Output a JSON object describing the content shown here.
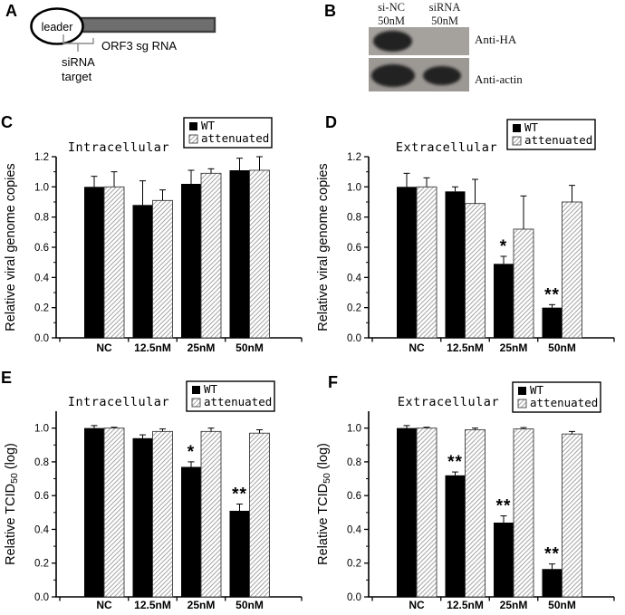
{
  "panel_a": {
    "label": "A",
    "leader": "leader",
    "orf3": "ORF3 sg RNA",
    "sirna_line1": "siRNA",
    "sirna_line2": "target"
  },
  "panel_b": {
    "label": "B",
    "lane1_line1": "si-NC",
    "lane1_line2": "50nM",
    "lane2_line1": "siRNA",
    "lane2_line2": "50nM",
    "blot1_label": "Anti-HA",
    "blot2_label": "Anti-actin"
  },
  "colors": {
    "bar_wt": "#000000",
    "hatch_line": "#a6a6a6",
    "genome_bar_fill": "#6e6e6e",
    "genome_bar_stroke": "#3d3d3d",
    "blot1_bg": "#a5a29e",
    "blot2_bg": "#9c9995"
  },
  "chart_data": [
    {
      "type": "bar",
      "panel_label": "C",
      "title": "Intracellular",
      "ylabel": "Relative viral genome copies",
      "ylabel_parts": [
        {
          "text": "Relative viral genome copies"
        }
      ],
      "xlabel": "",
      "categories": [
        "NC",
        "12.5nM",
        "25nM",
        "50nM"
      ],
      "yticks": [
        "0.0",
        "0.2",
        "0.4",
        "0.6",
        "0.8",
        "1.0",
        "1.2"
      ],
      "ylim": [
        0,
        1.2
      ],
      "grid": false,
      "legend": {
        "position": "top-right",
        "entries": [
          "WT",
          "attenuated"
        ]
      },
      "series": [
        {
          "name": "WT",
          "style": "solid-black",
          "values": [
            1.0,
            0.88,
            1.02,
            1.11
          ],
          "errors": [
            0.07,
            0.16,
            0.09,
            0.08
          ],
          "sig": [
            "",
            "",
            "",
            ""
          ]
        },
        {
          "name": "attenuated",
          "style": "hatched",
          "values": [
            1.0,
            0.91,
            1.09,
            1.11
          ],
          "errors": [
            0.1,
            0.07,
            0.03,
            0.09
          ],
          "sig": [
            "",
            "",
            "",
            ""
          ]
        }
      ]
    },
    {
      "type": "bar",
      "panel_label": "D",
      "title": "Extracellular",
      "ylabel": "Relative viral genome copies",
      "ylabel_parts": [
        {
          "text": "Relative viral genome copies"
        }
      ],
      "xlabel": "",
      "categories": [
        "NC",
        "12.5nM",
        "25nM",
        "50nM"
      ],
      "yticks": [
        "0.0",
        "0.2",
        "0.4",
        "0.6",
        "0.8",
        "1.0",
        "1.2"
      ],
      "ylim": [
        0,
        1.2
      ],
      "grid": false,
      "legend": {
        "position": "top-right",
        "entries": [
          "WT",
          "attenuated"
        ]
      },
      "series": [
        {
          "name": "WT",
          "style": "solid-black",
          "values": [
            1.0,
            0.97,
            0.49,
            0.2
          ],
          "errors": [
            0.09,
            0.03,
            0.05,
            0.02
          ],
          "sig": [
            "",
            "",
            "*",
            "**"
          ]
        },
        {
          "name": "attenuated",
          "style": "hatched",
          "values": [
            1.0,
            0.89,
            0.72,
            0.9
          ],
          "errors": [
            0.06,
            0.16,
            0.22,
            0.11
          ],
          "sig": [
            "",
            "",
            "",
            ""
          ]
        }
      ]
    },
    {
      "type": "bar",
      "panel_label": "E",
      "title": "Intracellular",
      "ylabel": "Relative TCID50 (log)",
      "ylabel_parts": [
        {
          "text": "Relative TCID"
        },
        {
          "text": "50",
          "sub": true
        },
        {
          "text": " (log)"
        }
      ],
      "xlabel": "",
      "categories": [
        "NC",
        "12.5nM",
        "25nM",
        "50nM"
      ],
      "yticks": [
        "0.0",
        "0.2",
        "0.4",
        "0.6",
        "0.8",
        "1.0"
      ],
      "ylim": [
        0,
        1.1
      ],
      "grid": false,
      "legend": {
        "position": "top-right",
        "entries": [
          "WT",
          "attenuated"
        ]
      },
      "series": [
        {
          "name": "WT",
          "style": "solid-black",
          "values": [
            1.0,
            0.94,
            0.77,
            0.51
          ],
          "errors": [
            0.015,
            0.02,
            0.03,
            0.04
          ],
          "sig": [
            "",
            "",
            "*",
            "**"
          ]
        },
        {
          "name": "attenuated",
          "style": "hatched",
          "values": [
            1.0,
            0.98,
            0.98,
            0.97
          ],
          "errors": [
            0.005,
            0.015,
            0.02,
            0.02
          ],
          "sig": [
            "",
            "",
            "",
            ""
          ]
        }
      ]
    },
    {
      "type": "bar",
      "panel_label": "F",
      "title": "Extracellular",
      "ylabel": "Relative TCID50 (log)",
      "ylabel_parts": [
        {
          "text": "Relative TCID"
        },
        {
          "text": "50",
          "sub": true
        },
        {
          "text": " (log)"
        }
      ],
      "xlabel": "",
      "categories": [
        "NC",
        "12.5nM",
        "25nM",
        "50nM"
      ],
      "yticks": [
        "0.0",
        "0.2",
        "0.4",
        "0.6",
        "0.8",
        "1.0"
      ],
      "ylim": [
        0,
        1.1
      ],
      "grid": false,
      "legend": {
        "position": "top-right",
        "entries": [
          "WT",
          "attenuated"
        ]
      },
      "series": [
        {
          "name": "WT",
          "style": "solid-black",
          "values": [
            1.0,
            0.72,
            0.44,
            0.165
          ],
          "errors": [
            0.015,
            0.02,
            0.04,
            0.03
          ],
          "sig": [
            "",
            "**",
            "**",
            "**"
          ]
        },
        {
          "name": "attenuated",
          "style": "hatched",
          "values": [
            1.0,
            0.99,
            0.995,
            0.965
          ],
          "errors": [
            0.005,
            0.01,
            0.008,
            0.015
          ],
          "sig": [
            "",
            "",
            "",
            ""
          ]
        }
      ]
    }
  ]
}
